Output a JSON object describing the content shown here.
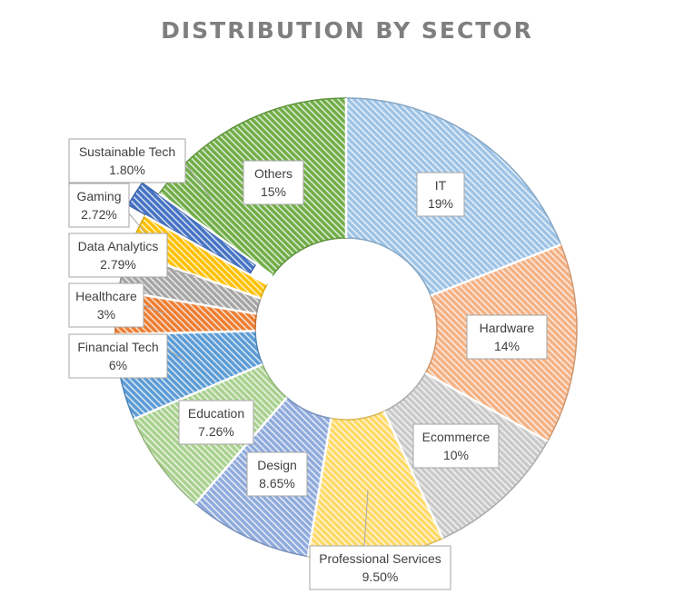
{
  "chart_data": {
    "type": "pie",
    "variant": "doughnut",
    "title": "DISTRIBUTION BY SECTOR",
    "legend": "none",
    "slices": [
      {
        "name": "IT",
        "value": 19,
        "label": "19%",
        "color": "#9DC3E6"
      },
      {
        "name": "Hardware",
        "value": 14,
        "label": "14%",
        "color": "#F4B183"
      },
      {
        "name": "Ecommerce",
        "value": 10,
        "label": "10%",
        "color": "#C9C9C9"
      },
      {
        "name": "Professional Services",
        "value": 9.5,
        "label": "9.50%",
        "color": "#FFD966"
      },
      {
        "name": "Design",
        "value": 8.65,
        "label": "8.65%",
        "color": "#8FAADC"
      },
      {
        "name": "Education",
        "value": 7.26,
        "label": "7.26%",
        "color": "#A9D18E"
      },
      {
        "name": "Financial Tech",
        "value": 6,
        "label": "6%",
        "color": "#5B9BD5"
      },
      {
        "name": "Healthcare",
        "value": 3,
        "label": "3%",
        "color": "#ED7D31"
      },
      {
        "name": "Data Analytics",
        "value": 2.79,
        "label": "2.79%",
        "color": "#A5A5A5"
      },
      {
        "name": "Gaming",
        "value": 2.72,
        "label": "2.72%",
        "color": "#FFC000"
      },
      {
        "name": "Sustainable Tech",
        "value": 1.8,
        "label": "1.80%",
        "color": "#4472C4"
      },
      {
        "name": "Others",
        "value": 15,
        "label": "15%",
        "color": "#70AD47"
      }
    ]
  }
}
